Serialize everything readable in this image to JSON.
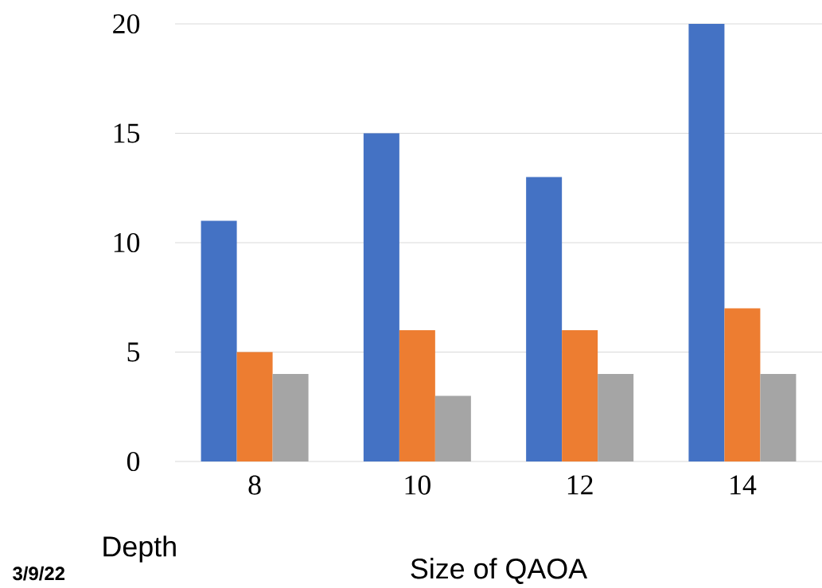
{
  "chart_data": {
    "type": "bar",
    "xlabel": "Size of QAOA",
    "ylabel": "Depth",
    "annotations": [
      "3/9/22"
    ],
    "categories": [
      "8",
      "10",
      "12",
      "14"
    ],
    "series": [
      {
        "color": "#4472c4",
        "values": [
          11,
          15,
          13,
          20
        ]
      },
      {
        "color": "#ed7d31",
        "values": [
          5,
          6,
          6,
          7
        ]
      },
      {
        "color": "#a5a5a5",
        "values": [
          4,
          3,
          4,
          4
        ]
      }
    ],
    "ylim": [
      0,
      20
    ],
    "yticks": [
      0,
      5,
      10,
      15,
      20
    ],
    "grid": "y"
  }
}
